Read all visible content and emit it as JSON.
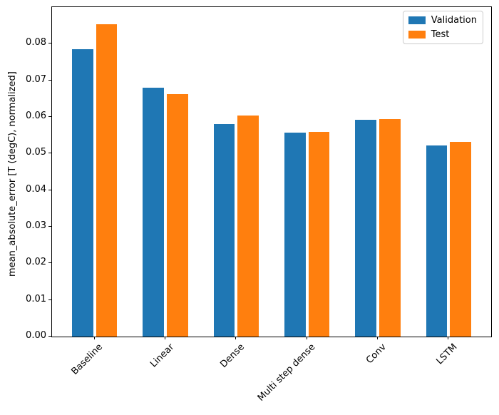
{
  "chart_data": {
    "type": "bar",
    "title": "",
    "categories": [
      "Baseline",
      "Linear",
      "Dense",
      "Multi step dense",
      "Conv",
      "LSTM"
    ],
    "series": [
      {
        "name": "Validation",
        "color": "#1f77b4",
        "values": [
          0.0785,
          0.0679,
          0.0581,
          0.0557,
          0.0593,
          0.0522
        ]
      },
      {
        "name": "Test",
        "color": "#ff7f0e",
        "values": [
          0.0854,
          0.0663,
          0.0603,
          0.056,
          0.0595,
          0.0532
        ]
      }
    ],
    "xlabel": "",
    "ylabel": "mean_absolute_error [T (degC), normalized]",
    "yticks": [
      0.0,
      0.01,
      0.02,
      0.03,
      0.04,
      0.05,
      0.06,
      0.07,
      0.08
    ],
    "ytick_labels": [
      "0.00",
      "0.01",
      "0.02",
      "0.03",
      "0.04",
      "0.05",
      "0.06",
      "0.07",
      "0.08"
    ],
    "ylim": [
      0,
      0.09
    ],
    "xlim": [
      -0.6,
      5.6
    ],
    "bar_width": 0.3,
    "bar_offset": 0.17,
    "xtick_rotation": 45,
    "grid": false,
    "legend": {
      "position": "upper right",
      "entries": [
        "Validation",
        "Test"
      ]
    }
  }
}
